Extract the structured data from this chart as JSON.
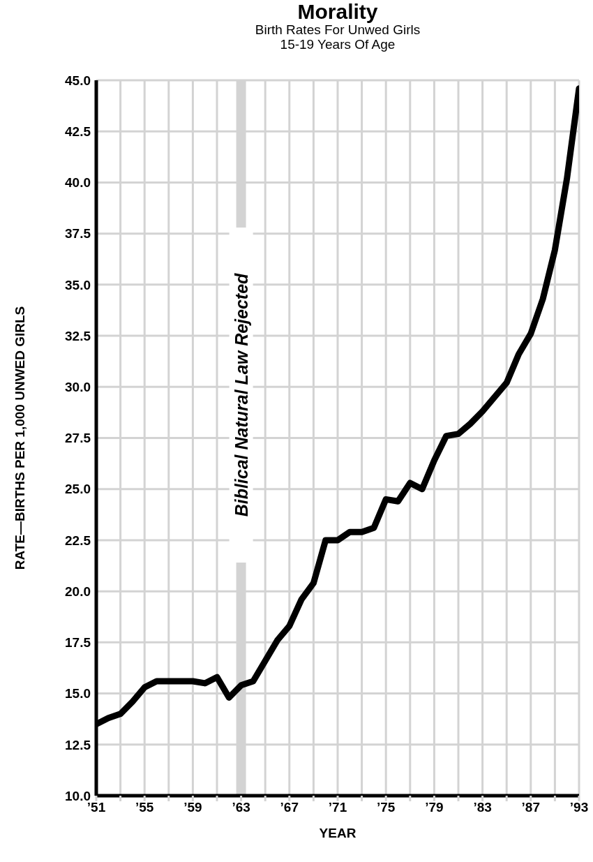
{
  "chart_data": {
    "type": "line",
    "title": "Morality",
    "subtitle": "Birth Rates For Unwed Girls\n15-19 Years Of Age",
    "xlabel": "YEAR",
    "ylabel": "RATE—BIRTHS PER 1,000 UNWED GIRLS",
    "categories": [
      "’51",
      null,
      null,
      null,
      "’55",
      null,
      null,
      null,
      "’59",
      null,
      null,
      null,
      "’63",
      null,
      null,
      null,
      "’67",
      null,
      null,
      null,
      "’71",
      null,
      null,
      null,
      "’75",
      null,
      null,
      null,
      "’79",
      null,
      null,
      null,
      "’83",
      null,
      null,
      null,
      "’87",
      null,
      null,
      null,
      "’93"
    ],
    "series": [
      {
        "color": "#000000",
        "values": [
          13.5,
          13.8,
          14.0,
          14.6,
          15.3,
          15.6,
          15.6,
          15.6,
          15.6,
          15.5,
          15.8,
          14.8,
          15.4,
          15.6,
          16.6,
          17.6,
          18.3,
          19.6,
          20.4,
          22.5,
          22.5,
          22.9,
          22.9,
          23.1,
          24.5,
          24.4,
          25.3,
          25.0,
          26.4,
          27.6,
          27.7,
          28.2,
          28.8,
          29.5,
          30.2,
          31.6,
          32.6,
          34.3,
          36.7,
          40.2,
          44.6
        ]
      }
    ],
    "ylim": [
      10,
      45
    ],
    "yticks": [
      {
        "value": 10,
        "label": "10.0"
      },
      {
        "value": 12.5,
        "label": "12.5"
      },
      {
        "value": 15,
        "label": "15.0"
      },
      {
        "value": 17.5,
        "label": "17.5"
      },
      {
        "value": 20,
        "label": "20.0"
      },
      {
        "value": 22.5,
        "label": "22.5"
      },
      {
        "value": 25,
        "label": "25.0"
      },
      {
        "value": 27.5,
        "label": "27.5"
      },
      {
        "value": 30,
        "label": "30.0"
      },
      {
        "value": 32.5,
        "label": "32.5"
      },
      {
        "value": 35,
        "label": "35.0"
      },
      {
        "value": 37.5,
        "label": "37.5"
      },
      {
        "value": 40,
        "label": "40.0"
      },
      {
        "value": 42.5,
        "label": "42.5"
      },
      {
        "value": 45,
        "label": "45.0"
      }
    ],
    "ref_lines": [
      {
        "axis": "x",
        "value": "’63",
        "label": "Biblical Natural Law Rejected",
        "color": "#d3d3d3"
      }
    ],
    "grid": true,
    "marker": "none",
    "line_style": "solid"
  }
}
